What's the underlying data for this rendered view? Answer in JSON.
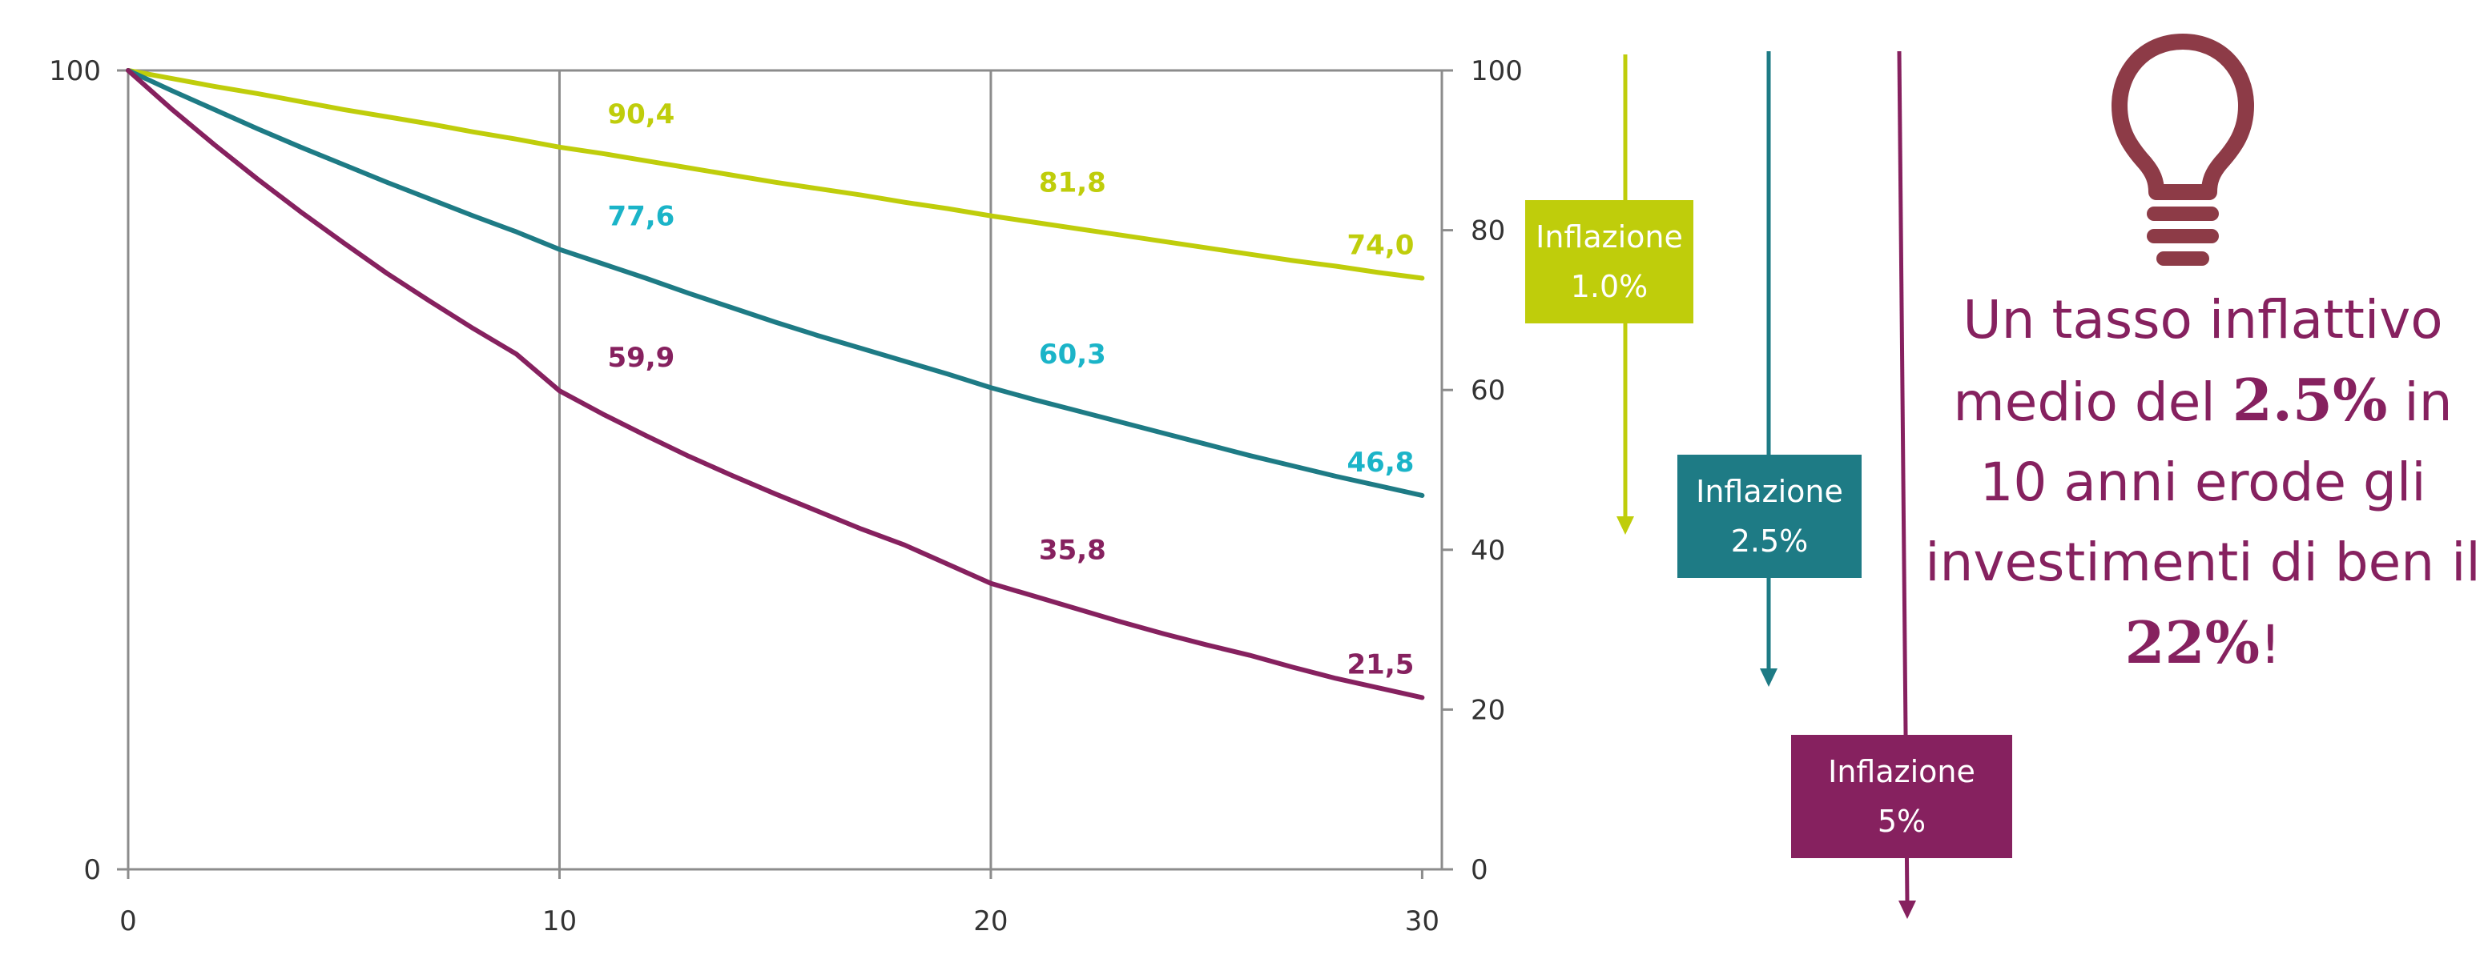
{
  "colors": {
    "inflation_1": "#bfcd0b",
    "inflation_2_5": "#1e7b85",
    "inflation_5": "#86215f",
    "label_2_5": "#1bb4c8",
    "grid": "#8c8c8c",
    "axis": "#8c8c8c"
  },
  "chart_data": {
    "type": "line",
    "x": [
      0,
      1,
      2,
      3,
      4,
      5,
      6,
      7,
      8,
      9,
      10,
      11,
      12,
      13,
      14,
      15,
      16,
      17,
      18,
      19,
      20,
      21,
      22,
      23,
      24,
      25,
      26,
      27,
      28,
      29,
      30
    ],
    "series": [
      {
        "name": "Inflazione 1.0%",
        "color": "#bfcd0b",
        "values": [
          100,
          99.0,
          98.0,
          97.1,
          96.1,
          95.1,
          94.2,
          93.3,
          92.3,
          91.4,
          90.4,
          89.6,
          88.7,
          87.8,
          86.9,
          86.0,
          85.2,
          84.4,
          83.5,
          82.7,
          81.8,
          81.0,
          80.2,
          79.4,
          78.6,
          77.8,
          77.0,
          76.2,
          75.5,
          74.7,
          74.0
        ]
      },
      {
        "name": "Inflazione 2.5%",
        "color": "#1e7b85",
        "values": [
          100,
          97.5,
          95.1,
          92.7,
          90.4,
          88.2,
          86.0,
          83.9,
          81.8,
          79.8,
          77.6,
          75.8,
          74.0,
          72.1,
          70.3,
          68.5,
          66.8,
          65.2,
          63.6,
          62.0,
          60.3,
          58.8,
          57.4,
          56.0,
          54.6,
          53.2,
          51.8,
          50.5,
          49.2,
          48.0,
          46.8
        ]
      },
      {
        "name": "Inflazione 5%",
        "color": "#86215f",
        "values": [
          100,
          95.2,
          90.7,
          86.4,
          82.3,
          78.4,
          74.6,
          71.1,
          67.7,
          64.5,
          59.9,
          57.0,
          54.3,
          51.7,
          49.3,
          47.0,
          44.8,
          42.6,
          40.6,
          38.2,
          35.8,
          34.2,
          32.6,
          31.0,
          29.5,
          28.1,
          26.8,
          25.3,
          23.9,
          22.7,
          21.5
        ]
      }
    ],
    "data_labels": [
      {
        "series": 0,
        "x": 10,
        "text": "90,4"
      },
      {
        "series": 0,
        "x": 20,
        "text": "81,8"
      },
      {
        "series": 0,
        "x": 30,
        "text": "74,0"
      },
      {
        "series": 1,
        "x": 10,
        "text": "77,6"
      },
      {
        "series": 1,
        "x": 20,
        "text": "60,3"
      },
      {
        "series": 1,
        "x": 30,
        "text": "46,8"
      },
      {
        "series": 2,
        "x": 10,
        "text": "59,9"
      },
      {
        "series": 2,
        "x": 20,
        "text": "35,8"
      },
      {
        "series": 2,
        "x": 30,
        "text": "21,5"
      }
    ],
    "x_ticks": [
      "0",
      "10",
      "20",
      "30"
    ],
    "y_left_ticks": [
      "0",
      "100"
    ],
    "y_right_ticks": [
      "0",
      "20",
      "40",
      "60",
      "80",
      "100"
    ],
    "xlim": [
      0,
      30
    ],
    "ylim": [
      0,
      100
    ],
    "grid": "vertical lines at x = 10 and 20",
    "title": "",
    "xlabel": "",
    "ylabel": ""
  },
  "legend_boxes": [
    {
      "line1": "Inflazione",
      "line2": "1.0%"
    },
    {
      "line1": "Inflazione",
      "line2": "2.5%"
    },
    {
      "line1": "Inflazione",
      "line2": "5%"
    }
  ],
  "callout": {
    "icon": "lightbulb-icon",
    "part1": "Un tasso inflattivo medio del ",
    "highlight1": "2.5%",
    "part2": " in 10 anni erode gli investimenti di ben il ",
    "highlight2": "22%",
    "part3": "!"
  }
}
